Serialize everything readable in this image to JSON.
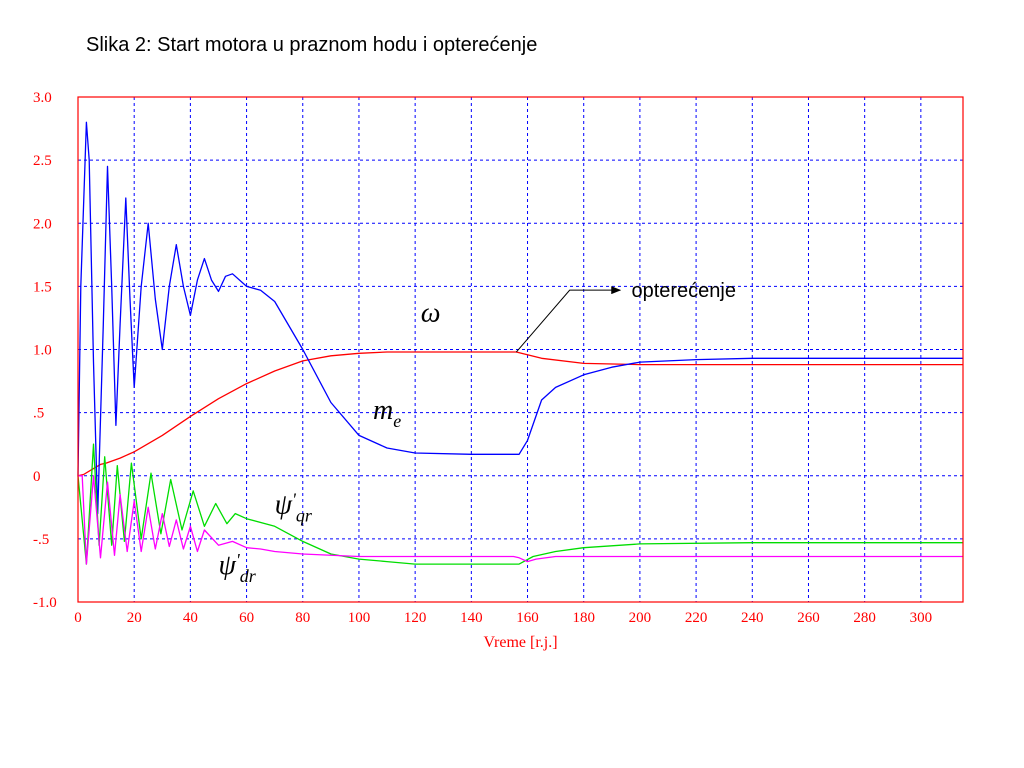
{
  "slide": {
    "title": "Slika 2: Start motora u praznom hodu i opterećenje"
  },
  "chart_data": {
    "type": "line",
    "title": "",
    "xlabel": "Vreme [r.j.]",
    "ylabel": "",
    "xlim": [
      0,
      315
    ],
    "ylim": [
      -1.0,
      3.0
    ],
    "x_ticks": [
      0,
      20,
      40,
      60,
      80,
      100,
      120,
      140,
      160,
      180,
      200,
      220,
      240,
      260,
      280,
      300
    ],
    "x_tick_labels": [
      "0",
      "20",
      "40",
      "60",
      "80",
      "100",
      "120",
      "140",
      "160",
      "180",
      "200",
      "220",
      "240",
      "260",
      "280",
      "300"
    ],
    "y_ticks": [
      3.0,
      2.5,
      2.0,
      1.5,
      1.0,
      0.5,
      0,
      -0.5,
      -1.0
    ],
    "y_tick_labels": [
      "3.0",
      "2.5",
      "2.0",
      "1.5",
      "1.0",
      ".5",
      "0",
      "-.5",
      "-1.0"
    ],
    "grid": true,
    "colors": {
      "frame": "#ff0000",
      "grid": "#0000ff"
    },
    "series": [
      {
        "color": "#ff0000",
        "x": [
          0,
          2,
          5,
          8,
          10,
          15,
          20,
          30,
          40,
          50,
          60,
          70,
          80,
          90,
          100,
          110,
          120,
          140,
          156,
          165,
          180,
          200,
          250,
          315
        ],
        "y": [
          0,
          0.01,
          0.05,
          0.09,
          0.1,
          0.14,
          0.19,
          0.32,
          0.47,
          0.61,
          0.73,
          0.83,
          0.91,
          0.95,
          0.97,
          0.98,
          0.98,
          0.98,
          0.98,
          0.93,
          0.89,
          0.88,
          0.88,
          0.88
        ]
      },
      {
        "color": "#0000ff",
        "x": [
          0,
          1,
          3,
          4,
          5.5,
          7,
          9,
          10.5,
          12,
          13.5,
          15,
          17,
          18.5,
          20,
          22.5,
          25,
          27.5,
          30,
          32.5,
          35,
          37.5,
          40,
          42.5,
          45,
          47.5,
          50,
          52.5,
          55,
          60,
          65,
          70,
          80,
          90,
          100,
          110,
          120,
          140,
          155,
          157,
          160,
          165,
          170,
          180,
          190,
          200,
          220,
          240,
          260,
          315
        ],
        "y": [
          0,
          1.5,
          2.8,
          2.5,
          0.9,
          -0.3,
          1.2,
          2.45,
          1.5,
          0.4,
          1.2,
          2.2,
          1.4,
          0.7,
          1.5,
          2.0,
          1.4,
          1.0,
          1.5,
          1.83,
          1.5,
          1.27,
          1.55,
          1.72,
          1.55,
          1.46,
          1.58,
          1.6,
          1.5,
          1.47,
          1.38,
          1.0,
          0.58,
          0.32,
          0.22,
          0.18,
          0.17,
          0.17,
          0.17,
          0.28,
          0.6,
          0.7,
          0.8,
          0.86,
          0.9,
          0.92,
          0.93,
          0.93,
          0.93
        ]
      },
      {
        "color": "#00dd00",
        "x": [
          0,
          1.5,
          3,
          5.5,
          7.5,
          9.5,
          12,
          14,
          16.5,
          19,
          22.5,
          26,
          29.5,
          33,
          37,
          41,
          45,
          49,
          53,
          56,
          60,
          70,
          80,
          90,
          100,
          110,
          120,
          140,
          155,
          157,
          162,
          170,
          180,
          200,
          240,
          315
        ],
        "y": [
          0,
          -0.35,
          -0.7,
          0.25,
          -0.55,
          0.15,
          -0.55,
          0.08,
          -0.52,
          0.1,
          -0.5,
          0.02,
          -0.46,
          -0.03,
          -0.43,
          -0.12,
          -0.4,
          -0.22,
          -0.38,
          -0.3,
          -0.34,
          -0.4,
          -0.52,
          -0.62,
          -0.66,
          -0.68,
          -0.7,
          -0.7,
          -0.7,
          -0.7,
          -0.64,
          -0.6,
          -0.57,
          -0.54,
          -0.53,
          -0.53
        ]
      },
      {
        "color": "#ff00ff",
        "x": [
          0,
          1.5,
          3,
          5.5,
          8,
          10.5,
          13,
          15,
          17.5,
          20,
          22.5,
          25,
          27.5,
          30,
          32.5,
          35,
          37.5,
          40,
          42.5,
          45,
          50,
          55,
          60,
          65,
          70,
          80,
          100,
          120,
          140,
          155,
          157,
          160,
          163,
          170,
          200,
          315
        ],
        "y": [
          0,
          0.0,
          -0.7,
          0.0,
          -0.65,
          -0.05,
          -0.63,
          -0.15,
          -0.6,
          -0.2,
          -0.6,
          -0.25,
          -0.58,
          -0.3,
          -0.56,
          -0.35,
          -0.58,
          -0.4,
          -0.6,
          -0.43,
          -0.55,
          -0.52,
          -0.57,
          -0.58,
          -0.6,
          -0.62,
          -0.64,
          -0.64,
          -0.64,
          -0.64,
          -0.65,
          -0.68,
          -0.66,
          -0.64,
          -0.64,
          -0.64
        ]
      }
    ],
    "annotations": [
      {
        "text": "ω",
        "x": 122,
        "y": 1.22
      },
      {
        "text": "m",
        "sub": "e",
        "x": 105,
        "y": 0.45
      },
      {
        "text": "ψ",
        "prime": "'",
        "sub": "qr",
        "x": 70,
        "y": -0.3
      },
      {
        "text": "ψ",
        "prime": "'",
        "sub": "dr",
        "x": 50,
        "y": -0.78
      },
      {
        "text": "opterećenje",
        "x": 197,
        "y": 1.47,
        "arrow_from": [
          156,
          0.98
        ],
        "arrow_knee": [
          175,
          1.47
        ],
        "arrow_to": [
          193,
          1.47
        ]
      }
    ]
  }
}
